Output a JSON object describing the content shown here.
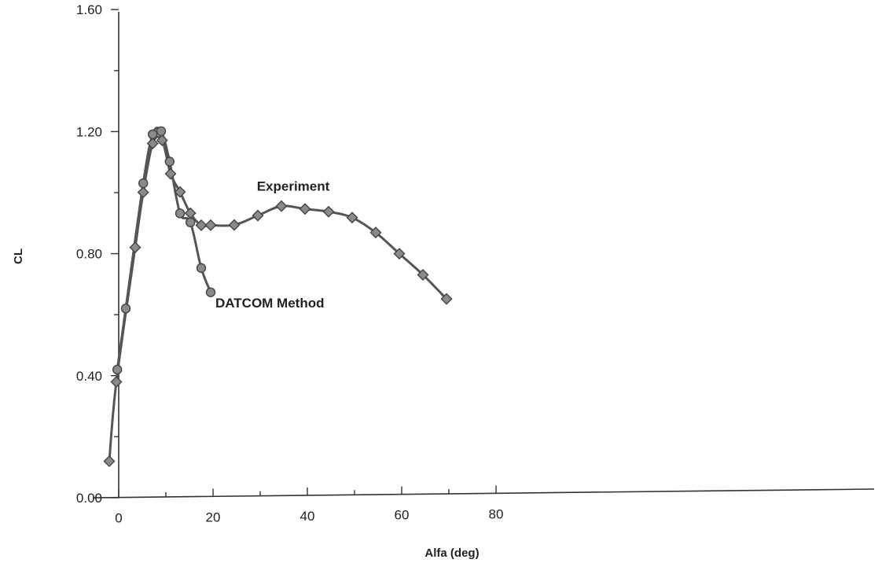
{
  "chart_data": {
    "type": "line",
    "xlabel": "Alfa (deg)",
    "ylabel": "CL",
    "xlim": [
      -2,
      80
    ],
    "ylim": [
      0,
      1.6
    ],
    "x_ticks": [
      "0",
      "20",
      "40",
      "60",
      "80"
    ],
    "y_ticks": [
      "0.00",
      "0.40",
      "0.80",
      "1.20",
      "1.60"
    ],
    "grid": false,
    "annotations": [
      {
        "label": "Experiment",
        "x": 37,
        "y": 1.0
      },
      {
        "label": "DATCOM Method",
        "x": 20.5,
        "y": 0.62
      }
    ],
    "colors": {
      "line": "#555555",
      "marker": "#8a8a8a",
      "axis": "#333333"
    },
    "series": [
      {
        "name": "Experiment",
        "marker": "diamond",
        "x": [
          -2,
          -0.5,
          3.5,
          5.2,
          7.2,
          9.2,
          11,
          13,
          15.2,
          17.5,
          19.5,
          24.5,
          29.5,
          34.5,
          39.5,
          44.5,
          49.5,
          54.5,
          59.5,
          64.5,
          69.5
        ],
        "y": [
          0.12,
          0.38,
          0.82,
          1.0,
          1.16,
          1.17,
          1.06,
          1.0,
          0.93,
          0.89,
          0.89,
          0.89,
          0.92,
          0.95,
          0.94,
          0.93,
          0.91,
          0.86,
          0.79,
          0.72,
          0.64
        ]
      },
      {
        "name": "DATCOM Method",
        "marker": "circle",
        "x": [
          -0.3,
          1.5,
          5.2,
          7.2,
          9,
          10.8,
          13,
          15.2,
          17.5,
          19.5
        ],
        "y": [
          0.42,
          0.62,
          1.03,
          1.19,
          1.2,
          1.1,
          0.93,
          0.9,
          0.75,
          0.67
        ]
      }
    ]
  }
}
